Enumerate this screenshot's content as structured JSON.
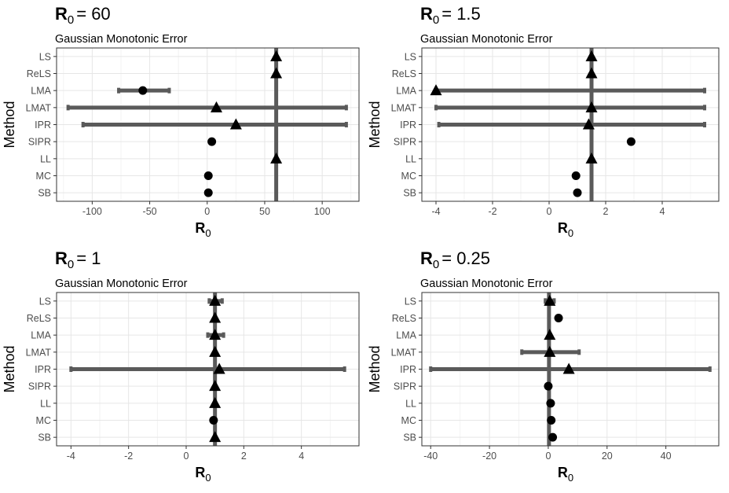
{
  "figure": {
    "panels": [
      {
        "title_main": "R",
        "title_sub": "0",
        "title_value": "= 60",
        "subtitle": "Gaussian Monotonic Error"
      },
      {
        "title_main": "R",
        "title_sub": "0",
        "title_value": "= 1.5",
        "subtitle": "Gaussian Monotonic Error"
      },
      {
        "title_main": "R",
        "title_sub": "0",
        "title_value": "= 1",
        "subtitle": "Gaussian Monotonic Error"
      },
      {
        "title_main": "R",
        "title_sub": "0",
        "title_value": "= 0.25",
        "subtitle": "Gaussian Monotonic Error"
      }
    ]
  },
  "chart_data": [
    {
      "type": "scatter",
      "title": "R0 = 60",
      "subtitle": "Gaussian Monotonic Error",
      "xlabel": "R0",
      "xlabel_main": "R",
      "xlabel_sub": "0",
      "ylabel": "Method",
      "categories": [
        "LS",
        "ReLS",
        "LMA",
        "LMAT",
        "IPR",
        "SIPR",
        "LL",
        "MC",
        "SB"
      ],
      "xlim": [
        -131,
        132
      ],
      "xticks": [
        -100,
        -50,
        0,
        50,
        100
      ],
      "xtick_labels": [
        "-100",
        "-50",
        "0",
        "50",
        "100"
      ],
      "reference_value": 60,
      "grid": true,
      "points": [
        {
          "method": "LS",
          "estimate": 60,
          "lower": null,
          "upper": null,
          "shape": "triangle"
        },
        {
          "method": "ReLS",
          "estimate": 60,
          "lower": null,
          "upper": null,
          "shape": "triangle"
        },
        {
          "method": "LMA",
          "estimate": -56,
          "lower": -77,
          "upper": -33,
          "shape": "circle"
        },
        {
          "method": "LMAT",
          "estimate": 8,
          "lower": -121,
          "upper": 121,
          "shape": "triangle"
        },
        {
          "method": "IPR",
          "estimate": 25,
          "lower": -108,
          "upper": 121,
          "shape": "triangle"
        },
        {
          "method": "SIPR",
          "estimate": 4,
          "lower": null,
          "upper": null,
          "shape": "circle"
        },
        {
          "method": "LL",
          "estimate": 60,
          "lower": null,
          "upper": null,
          "shape": "triangle"
        },
        {
          "method": "MC",
          "estimate": 1,
          "lower": null,
          "upper": null,
          "shape": "circle"
        },
        {
          "method": "SB",
          "estimate": 1,
          "lower": null,
          "upper": null,
          "shape": "circle"
        }
      ]
    },
    {
      "type": "scatter",
      "title": "R0 = 1.5",
      "subtitle": "Gaussian Monotonic Error",
      "xlabel": "R0",
      "xlabel_main": "R",
      "xlabel_sub": "0",
      "ylabel": "Method",
      "categories": [
        "LS",
        "ReLS",
        "LMA",
        "LMAT",
        "IPR",
        "SIPR",
        "LL",
        "MC",
        "SB"
      ],
      "xlim": [
        -4.5,
        6.0
      ],
      "xticks": [
        -4,
        -2,
        0,
        2,
        4
      ],
      "xtick_labels": [
        "-4",
        "-2",
        "0",
        "2",
        "4"
      ],
      "reference_value": 1.5,
      "grid": true,
      "points": [
        {
          "method": "LS",
          "estimate": 1.5,
          "lower": null,
          "upper": null,
          "shape": "triangle"
        },
        {
          "method": "ReLS",
          "estimate": 1.5,
          "lower": null,
          "upper": null,
          "shape": "triangle"
        },
        {
          "method": "LMA",
          "estimate": -4.0,
          "lower": -4.0,
          "upper": 5.5,
          "shape": "triangle"
        },
        {
          "method": "LMAT",
          "estimate": 1.5,
          "lower": -4.0,
          "upper": 5.5,
          "shape": "triangle"
        },
        {
          "method": "IPR",
          "estimate": 1.4,
          "lower": -3.9,
          "upper": 5.5,
          "shape": "triangle"
        },
        {
          "method": "SIPR",
          "estimate": 2.9,
          "lower": null,
          "upper": null,
          "shape": "circle"
        },
        {
          "method": "LL",
          "estimate": 1.5,
          "lower": null,
          "upper": null,
          "shape": "triangle"
        },
        {
          "method": "MC",
          "estimate": 0.95,
          "lower": null,
          "upper": null,
          "shape": "circle"
        },
        {
          "method": "SB",
          "estimate": 1.0,
          "lower": null,
          "upper": null,
          "shape": "circle"
        }
      ]
    },
    {
      "type": "scatter",
      "title": "R0 = 1",
      "subtitle": "Gaussian Monotonic Error",
      "xlabel": "R0",
      "xlabel_main": "R",
      "xlabel_sub": "0",
      "ylabel": "Method",
      "categories": [
        "LS",
        "ReLS",
        "LMA",
        "LMAT",
        "IPR",
        "SIPR",
        "LL",
        "MC",
        "SB"
      ],
      "xlim": [
        -4.5,
        6.0
      ],
      "xticks": [
        -4,
        -2,
        0,
        2,
        4
      ],
      "xtick_labels": [
        "-4",
        "-2",
        "0",
        "2",
        "4"
      ],
      "reference_value": 1,
      "grid": true,
      "points": [
        {
          "method": "LS",
          "estimate": 1.0,
          "lower": 0.8,
          "upper": 1.25,
          "shape": "triangle"
        },
        {
          "method": "ReLS",
          "estimate": 1.0,
          "lower": null,
          "upper": null,
          "shape": "triangle"
        },
        {
          "method": "LMA",
          "estimate": 1.0,
          "lower": 0.75,
          "upper": 1.3,
          "shape": "triangle"
        },
        {
          "method": "LMAT",
          "estimate": 1.0,
          "lower": null,
          "upper": null,
          "shape": "triangle"
        },
        {
          "method": "IPR",
          "estimate": 1.15,
          "lower": -4.0,
          "upper": 5.5,
          "shape": "triangle"
        },
        {
          "method": "SIPR",
          "estimate": 1.0,
          "lower": null,
          "upper": null,
          "shape": "triangle"
        },
        {
          "method": "LL",
          "estimate": 1.0,
          "lower": null,
          "upper": null,
          "shape": "triangle"
        },
        {
          "method": "MC",
          "estimate": 0.95,
          "lower": null,
          "upper": null,
          "shape": "circle"
        },
        {
          "method": "SB",
          "estimate": 1.0,
          "lower": null,
          "upper": null,
          "shape": "triangle"
        }
      ]
    },
    {
      "type": "scatter",
      "title": "R0 = 0.25",
      "subtitle": "Gaussian Monotonic Error",
      "xlabel": "R0",
      "xlabel_main": "R",
      "xlabel_sub": "0",
      "ylabel": "Method",
      "categories": [
        "LS",
        "ReLS",
        "LMA",
        "LMAT",
        "IPR",
        "SIPR",
        "LL",
        "MC",
        "SB"
      ],
      "xlim": [
        -43,
        58
      ],
      "xticks": [
        -40,
        -20,
        0,
        20,
        40
      ],
      "xtick_labels": [
        "-40",
        "-20",
        "0",
        "20",
        "40"
      ],
      "reference_value": 0.25,
      "grid": true,
      "points": [
        {
          "method": "LS",
          "estimate": 0.5,
          "lower": -1.0,
          "upper": 2.0,
          "shape": "triangle"
        },
        {
          "method": "ReLS",
          "estimate": 3.5,
          "lower": null,
          "upper": null,
          "shape": "circle"
        },
        {
          "method": "LMA",
          "estimate": 0.5,
          "lower": null,
          "upper": null,
          "shape": "triangle"
        },
        {
          "method": "LMAT",
          "estimate": 0.5,
          "lower": -9,
          "upper": 10.5,
          "shape": "triangle"
        },
        {
          "method": "IPR",
          "estimate": 7,
          "lower": -40,
          "upper": 55,
          "shape": "triangle"
        },
        {
          "method": "SIPR",
          "estimate": 0.0,
          "lower": null,
          "upper": null,
          "shape": "circle"
        },
        {
          "method": "LL",
          "estimate": 0.8,
          "lower": null,
          "upper": null,
          "shape": "circle"
        },
        {
          "method": "MC",
          "estimate": 1.0,
          "lower": null,
          "upper": null,
          "shape": "circle"
        },
        {
          "method": "SB",
          "estimate": 1.5,
          "lower": null,
          "upper": null,
          "shape": "circle"
        }
      ]
    }
  ]
}
